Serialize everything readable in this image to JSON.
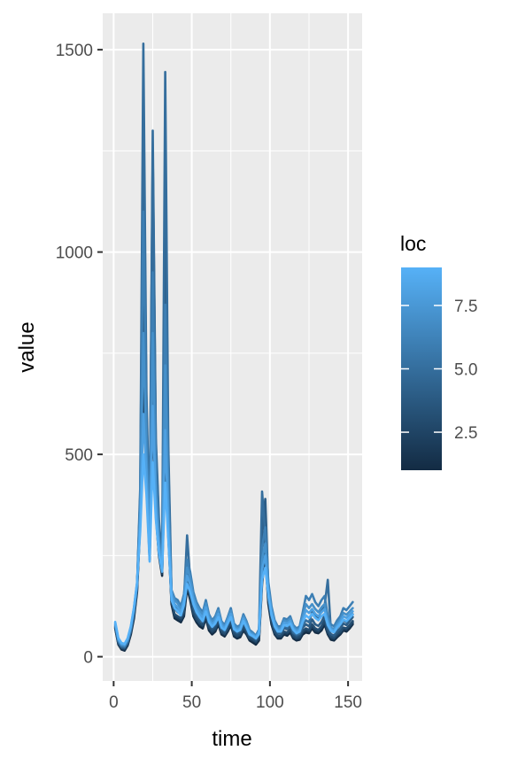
{
  "chart_data": {
    "type": "line",
    "xlabel": "time",
    "ylabel": "value",
    "xlim": [
      -7,
      159
    ],
    "ylim": [
      -60,
      1590
    ],
    "x_ticks": [
      {
        "value": 0,
        "label": "0"
      },
      {
        "value": 50,
        "label": "50"
      },
      {
        "value": 100,
        "label": "100"
      },
      {
        "value": 150,
        "label": "150"
      }
    ],
    "y_ticks": [
      {
        "value": 0,
        "label": "0"
      },
      {
        "value": 500,
        "label": "500"
      },
      {
        "value": 1000,
        "label": "1000"
      },
      {
        "value": 1500,
        "label": "1500"
      }
    ],
    "grid": true,
    "panel_background": "#ebebeb",
    "legend": {
      "title": "loc",
      "placement": "right",
      "range": [
        1,
        9
      ],
      "ticks": [
        {
          "value": 2.5,
          "label": "2.5"
        },
        {
          "value": 5.0,
          "label": "5.0"
        },
        {
          "value": 7.5,
          "label": "7.5"
        }
      ],
      "low_color": "#132b43",
      "high_color": "#56b1f7"
    },
    "keypoints_x": [
      1,
      3,
      5,
      7,
      9,
      11,
      13,
      15,
      17,
      19,
      21,
      23,
      25,
      27,
      29,
      31,
      33,
      35,
      37,
      39,
      41,
      43,
      45,
      47,
      49,
      51,
      53,
      55,
      57,
      59,
      61,
      63,
      65,
      67,
      69,
      71,
      73,
      75,
      77,
      79,
      81,
      83,
      85,
      87,
      89,
      91,
      93,
      95,
      97,
      99,
      101,
      103,
      105,
      107,
      109,
      111,
      113,
      115,
      117,
      119,
      121,
      123,
      125,
      127,
      129,
      131,
      133,
      135,
      137,
      139,
      141,
      143,
      145,
      147,
      149,
      151,
      153
    ],
    "series": [
      {
        "loc": 1,
        "values": [
          70,
          30,
          18,
          15,
          28,
          55,
          95,
          160,
          330,
          820,
          430,
          240,
          700,
          350,
          250,
          200,
          570,
          300,
          130,
          95,
          90,
          85,
          100,
          170,
          140,
          100,
          85,
          75,
          70,
          95,
          65,
          55,
          62,
          80,
          55,
          50,
          62,
          78,
          50,
          45,
          48,
          65,
          55,
          40,
          35,
          30,
          40,
          180,
          250,
          130,
          80,
          55,
          45,
          45,
          55,
          52,
          60,
          45,
          40,
          42,
          55,
          60,
          58,
          70,
          60,
          58,
          65,
          80,
          55,
          42,
          40,
          48,
          55,
          65,
          62,
          70,
          80
        ]
      },
      {
        "loc": 2,
        "values": [
          72,
          32,
          20,
          18,
          30,
          60,
          100,
          165,
          340,
          720,
          440,
          245,
          600,
          355,
          255,
          205,
          500,
          305,
          135,
          100,
          95,
          90,
          105,
          175,
          145,
          105,
          90,
          80,
          75,
          100,
          70,
          60,
          66,
          84,
          58,
          54,
          66,
          82,
          54,
          48,
          52,
          70,
          58,
          44,
          40,
          35,
          44,
          190,
          260,
          135,
          84,
          58,
          48,
          48,
          58,
          56,
          64,
          48,
          44,
          46,
          60,
          65,
          62,
          74,
          64,
          62,
          70,
          85,
          58,
          46,
          44,
          52,
          58,
          68,
          66,
          74,
          84
        ]
      },
      {
        "loc": 3,
        "values": [
          74,
          34,
          22,
          20,
          33,
          62,
          105,
          170,
          360,
          900,
          480,
          260,
          780,
          380,
          265,
          210,
          650,
          330,
          140,
          105,
          100,
          95,
          112,
          185,
          152,
          110,
          94,
          84,
          78,
          105,
          74,
          64,
          70,
          88,
          62,
          57,
          70,
          86,
          58,
          52,
          56,
          74,
          62,
          47,
          43,
          38,
          48,
          210,
          290,
          145,
          90,
          62,
          52,
          52,
          62,
          60,
          68,
          52,
          47,
          50,
          64,
          70,
          66,
          80,
          70,
          66,
          75,
          90,
          62,
          50,
          47,
          56,
          62,
          72,
          70,
          78,
          88
        ]
      },
      {
        "loc": 4,
        "values": [
          76,
          36,
          24,
          22,
          35,
          64,
          108,
          172,
          400,
          1300,
          620,
          300,
          1250,
          520,
          330,
          230,
          1100,
          480,
          155,
          120,
          110,
          105,
          125,
          210,
          170,
          120,
          102,
          92,
          85,
          115,
          82,
          70,
          78,
          98,
          68,
          62,
          78,
          95,
          64,
          58,
          62,
          82,
          68,
          52,
          48,
          42,
          54,
          300,
          390,
          170,
          100,
          70,
          58,
          58,
          70,
          68,
          76,
          58,
          52,
          56,
          72,
          80,
          75,
          92,
          80,
          76,
          86,
          102,
          70,
          56,
          52,
          62,
          70,
          82,
          78,
          88,
          98
        ]
      },
      {
        "loc": 5,
        "values": [
          78,
          38,
          26,
          24,
          38,
          66,
          112,
          175,
          420,
          1515,
          650,
          310,
          1300,
          540,
          340,
          235,
          1445,
          520,
          160,
          125,
          120,
          110,
          140,
          300,
          190,
          130,
          110,
          100,
          95,
          130,
          90,
          78,
          86,
          110,
          75,
          68,
          86,
          108,
          70,
          64,
          68,
          92,
          76,
          56,
          52,
          46,
          60,
          408,
          300,
          160,
          105,
          74,
          62,
          62,
          74,
          72,
          80,
          60,
          55,
          58,
          78,
          90,
          85,
          110,
          100,
          95,
          115,
          125,
          190,
          65,
          60,
          70,
          80,
          90,
          85,
          95,
          105
        ]
      },
      {
        "loc": 6,
        "values": [
          80,
          40,
          28,
          26,
          40,
          70,
          116,
          178,
          390,
          1100,
          560,
          290,
          950,
          450,
          300,
          225,
          870,
          400,
          165,
          145,
          140,
          125,
          155,
          240,
          210,
          160,
          135,
          120,
          110,
          140,
          105,
          90,
          100,
          120,
          88,
          78,
          98,
          120,
          82,
          74,
          78,
          105,
          88,
          66,
          60,
          52,
          68,
          270,
          320,
          185,
          125,
          90,
          75,
          75,
          95,
          92,
          100,
          78,
          70,
          75,
          110,
          150,
          140,
          155,
          135,
          125,
          140,
          150,
          100,
          80,
          75,
          90,
          100,
          120,
          115,
          125,
          135
        ]
      },
      {
        "loc": 7,
        "values": [
          82,
          42,
          30,
          28,
          42,
          72,
          118,
          180,
          360,
          800,
          500,
          270,
          800,
          410,
          285,
          220,
          720,
          360,
          160,
          140,
          132,
          118,
          148,
          220,
          195,
          150,
          128,
          114,
          104,
          132,
          100,
          86,
          95,
          114,
          84,
          74,
          94,
          114,
          78,
          70,
          74,
          100,
          84,
          62,
          57,
          50,
          64,
          240,
          280,
          170,
          118,
          85,
          70,
          70,
          90,
          87,
          94,
          74,
          66,
          70,
          100,
          130,
          120,
          130,
          118,
          110,
          122,
          130,
          90,
          72,
          68,
          82,
          92,
          108,
          104,
          112,
          120
        ]
      },
      {
        "loc": 8,
        "values": [
          84,
          44,
          32,
          30,
          44,
          74,
          120,
          182,
          330,
          600,
          450,
          250,
          620,
          370,
          270,
          215,
          560,
          320,
          150,
          130,
          122,
          110,
          138,
          200,
          178,
          140,
          118,
          106,
          96,
          122,
          92,
          80,
          88,
          106,
          78,
          70,
          88,
          106,
          72,
          66,
          70,
          94,
          78,
          58,
          54,
          48,
          60,
          215,
          250,
          160,
          110,
          80,
          66,
          66,
          84,
          82,
          88,
          70,
          62,
          66,
          92,
          115,
          108,
          118,
          106,
          100,
          110,
          118,
          84,
          68,
          64,
          76,
          86,
          100,
          96,
          104,
          112
        ]
      },
      {
        "loc": 9,
        "values": [
          86,
          46,
          34,
          32,
          46,
          76,
          122,
          184,
          310,
          500,
          400,
          235,
          480,
          340,
          255,
          210,
          430,
          290,
          140,
          120,
          112,
          102,
          128,
          180,
          160,
          130,
          110,
          98,
          88,
          112,
          86,
          74,
          82,
          98,
          72,
          66,
          82,
          98,
          68,
          62,
          66,
          88,
          72,
          55,
          51,
          45,
          56,
          190,
          220,
          150,
          102,
          75,
          62,
          62,
          78,
          76,
          82,
          66,
          58,
          62,
          86,
          102,
          96,
          106,
          96,
          90,
          100,
          106,
          78,
          64,
          60,
          72,
          80,
          92,
          88,
          96,
          104
        ]
      }
    ]
  }
}
